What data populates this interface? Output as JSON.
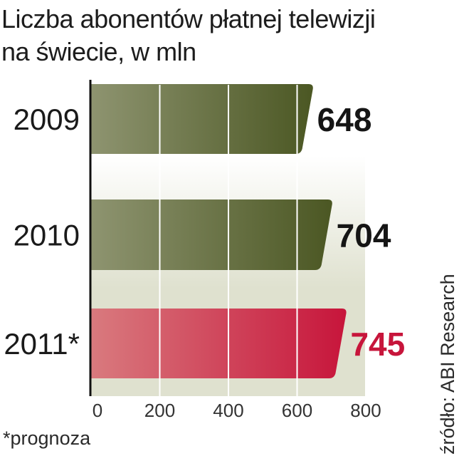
{
  "chart_data": {
    "type": "bar",
    "orientation": "horizontal",
    "title_lines": [
      "Liczba abonentów płatnej telewizji",
      "na świecie, w mln"
    ],
    "categories": [
      "2009",
      "2010",
      "2011*"
    ],
    "values": [
      648,
      704,
      745
    ],
    "value_labels": [
      "648",
      "704",
      "745"
    ],
    "highlight_index": 2,
    "xlim": [
      0,
      800
    ],
    "xticks": [
      0,
      200,
      400,
      600,
      800
    ],
    "xtick_labels": [
      "0",
      "200",
      "400",
      "600",
      "800"
    ],
    "grid": true,
    "footnote": "*prognoza",
    "source": "źródło: ABI Research"
  },
  "colors": {
    "bar_start": "#8e9470",
    "bar_end": "#4b5723",
    "highlight_start": "#d97a7e",
    "highlight_end": "#c7153b",
    "highlight_text": "#c7153b",
    "value_text": "#151515",
    "band": "#dfe1cf",
    "axis": "#111111"
  }
}
